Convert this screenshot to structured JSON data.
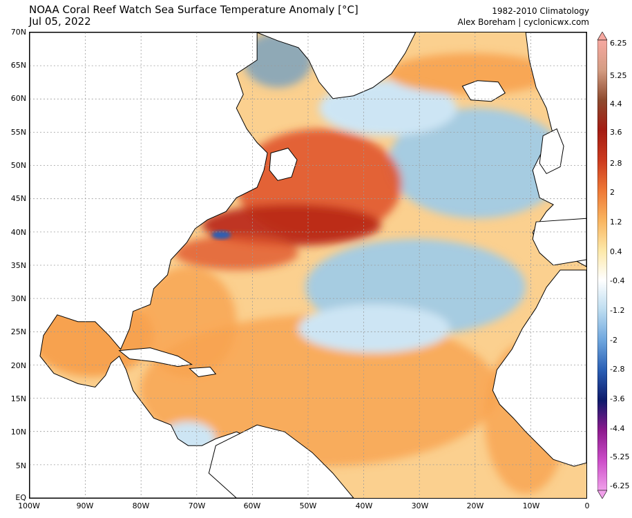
{
  "header": {
    "title": "NOAA Coral Reef Watch Sea Surface Temperature Anomaly [°C]",
    "date": "Jul 05, 2022",
    "climatology": "1982-2010 Climatology",
    "credit": "Alex Boreham | cyclonicwx.com"
  },
  "map": {
    "lat_labels": [
      "70N",
      "65N",
      "60N",
      "55N",
      "50N",
      "45N",
      "40N",
      "35N",
      "30N",
      "25N",
      "20N",
      "15N",
      "10N",
      "5N",
      "EQ"
    ],
    "lon_labels": [
      "100W",
      "90W",
      "80W",
      "70W",
      "60W",
      "50W",
      "40W",
      "30W",
      "20W",
      "10W",
      "0"
    ],
    "lat_range": [
      0,
      70
    ],
    "lon_range": [
      -100,
      0
    ],
    "colors": {
      "land": "#ffffff",
      "coast": "#000000",
      "grid": "#9a9a9a",
      "warm_light": "#fbd08f",
      "warm": "#f7a24f",
      "warm_strong": "#e0552b",
      "hot": "#b82616",
      "cool_light": "#cde5f4",
      "cool": "#9ccbea",
      "cool_strong": "#4a8fd0"
    }
  },
  "colorbar": {
    "labels": [
      "6.25",
      "5.25",
      "4.4",
      "3.6",
      "2.8",
      "2",
      "1.2",
      "0.4",
      "-0.4",
      "-1.2",
      "-2",
      "-2.8",
      "-3.6",
      "-4.4",
      "-5.25",
      "-6.25"
    ],
    "stops": [
      "#f0a0ea",
      "#cc4cc8",
      "#8d1a8e",
      "#0d1a6b",
      "#2a5fb5",
      "#6ea6de",
      "#bcdcf0",
      "#ffffff",
      "#fde8a8",
      "#f9b45f",
      "#ee7735",
      "#cc3a1e",
      "#a41c12",
      "#8e4a2e",
      "#d49c82",
      "#f6a8a0"
    ]
  }
}
